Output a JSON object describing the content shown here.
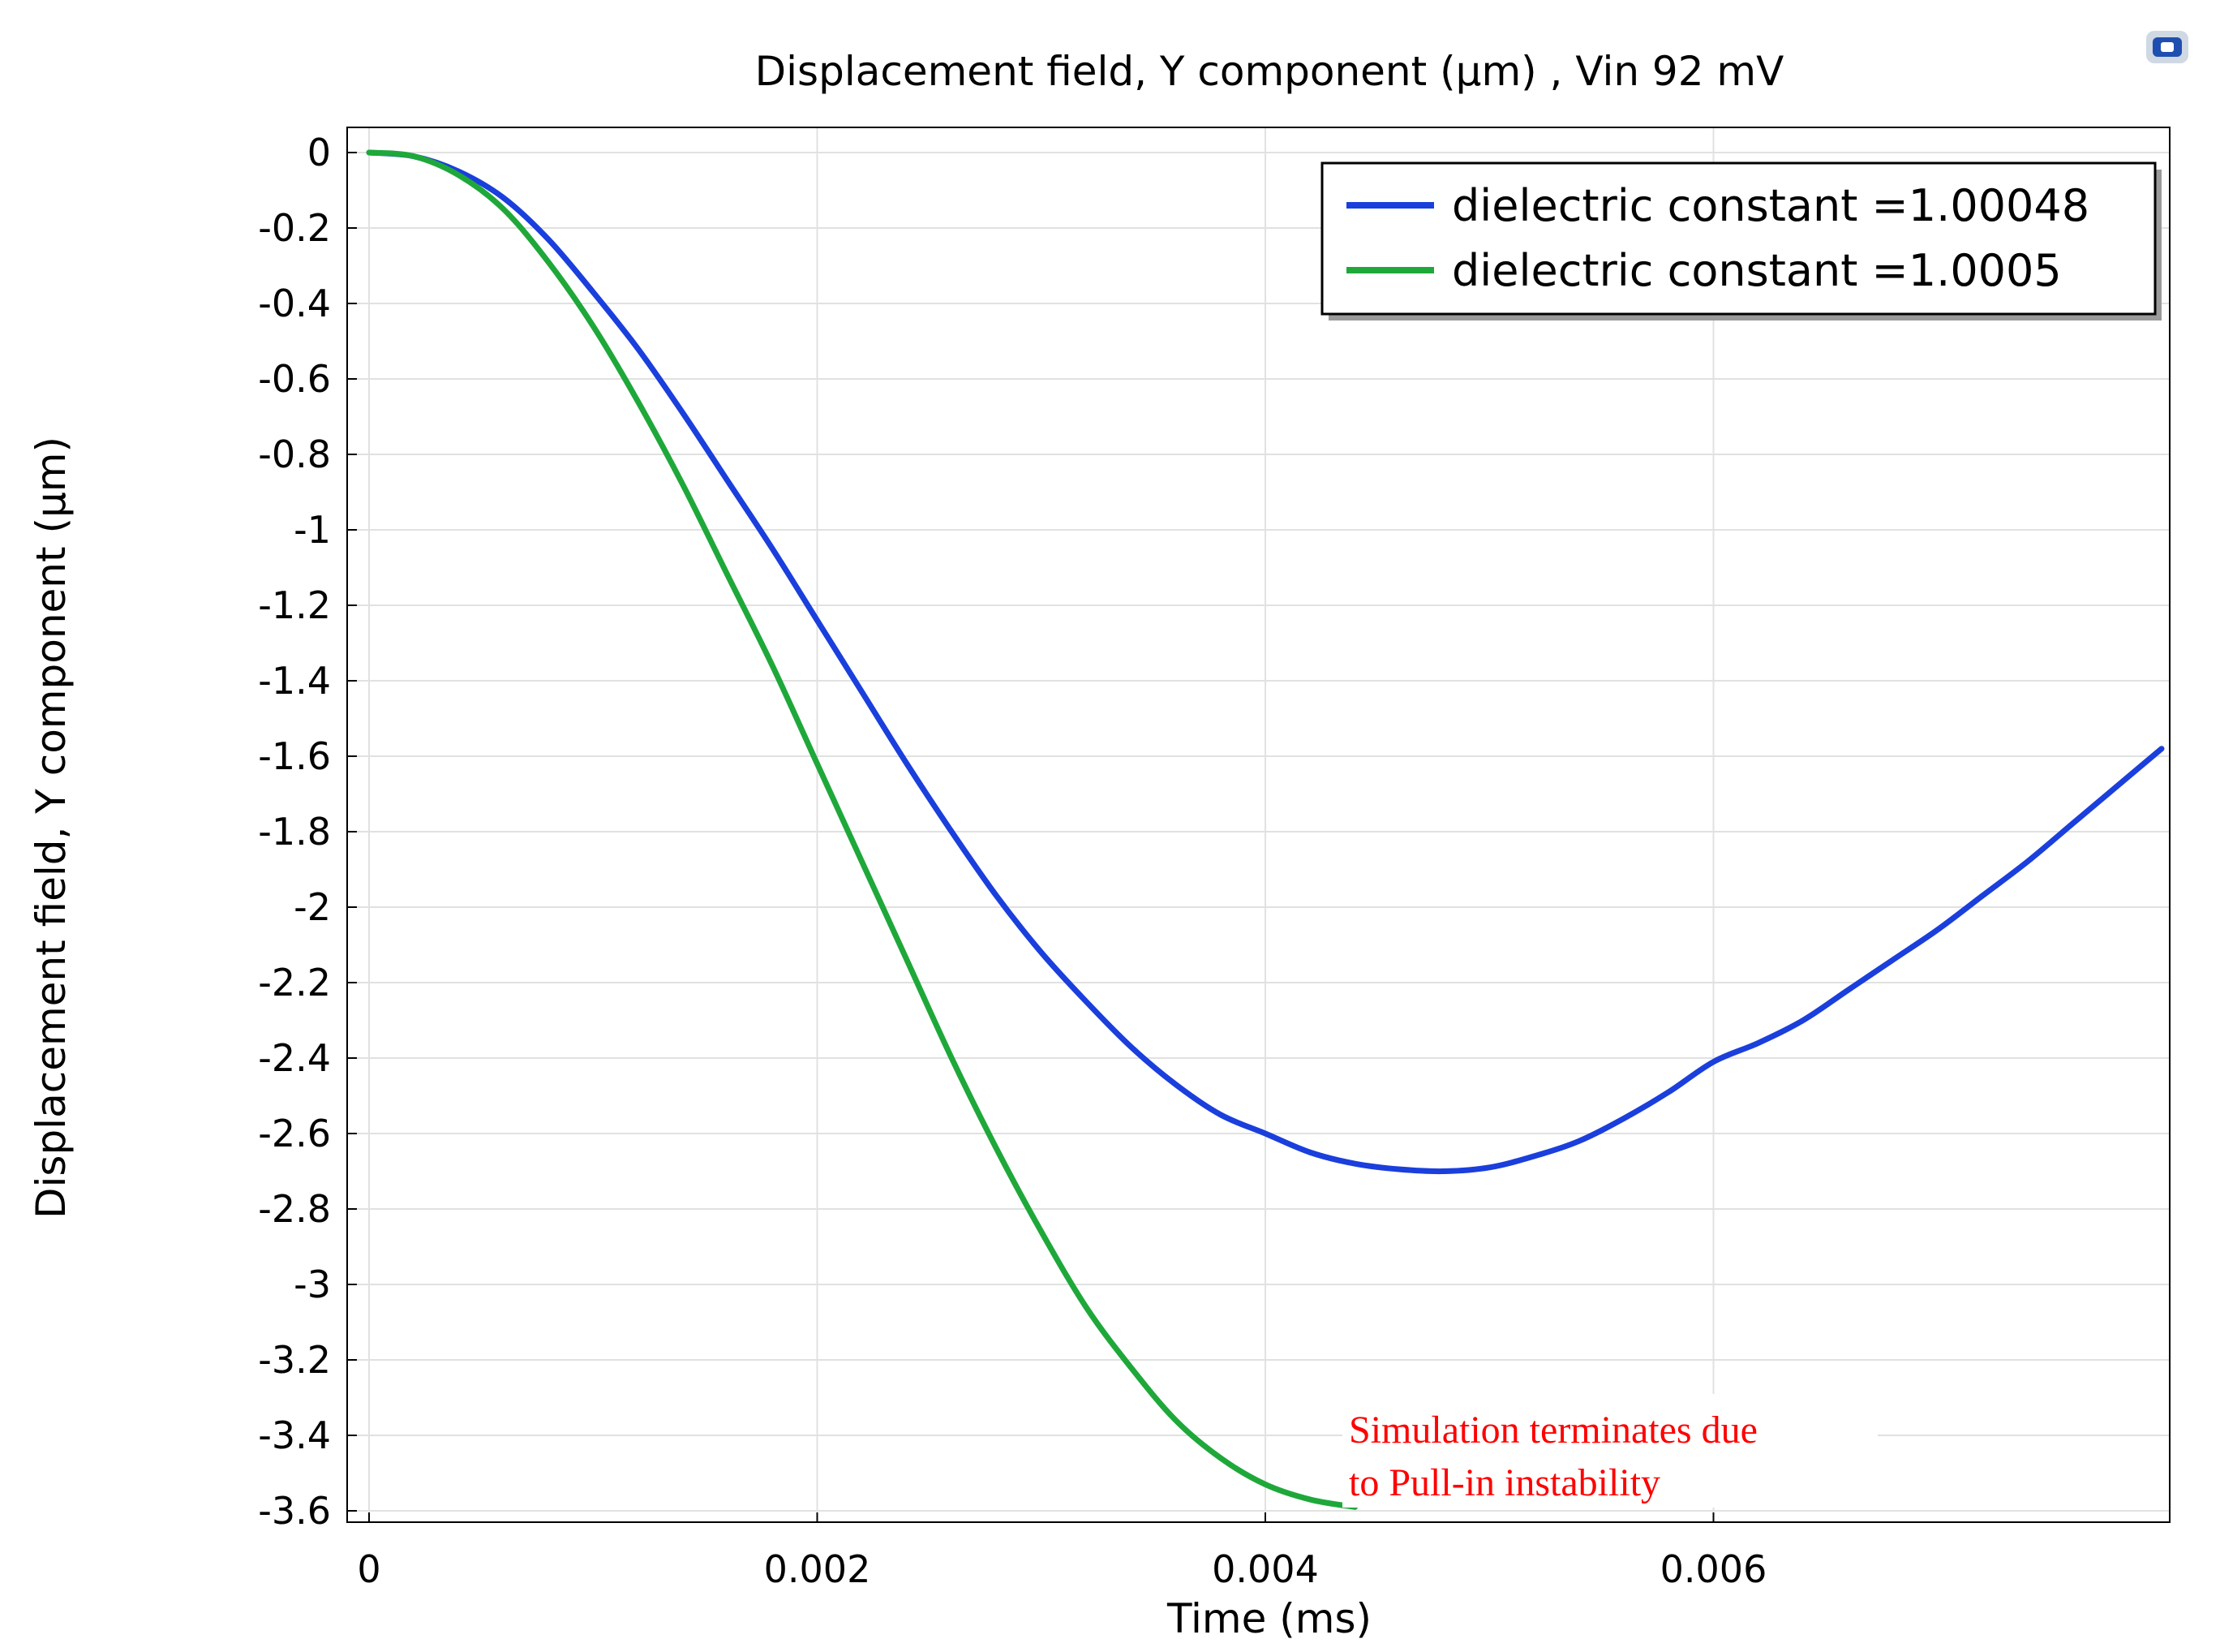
{
  "chart_data": {
    "type": "line",
    "title": "Displacement field, Y component (µm) , Vin 92 mV",
    "xlabel": "Time (ms)",
    "ylabel": "Displacement field, Y component (µm)",
    "xlim": [
      0,
      0.008
    ],
    "ylim": [
      -3.6,
      0
    ],
    "xticks": [
      0,
      0.002,
      0.004,
      0.006
    ],
    "xtick_labels": [
      "0",
      "0.002",
      "0.004",
      "0.006"
    ],
    "yticks": [
      0,
      -0.2,
      -0.4,
      -0.6,
      -0.8,
      -1,
      -1.2,
      -1.4,
      -1.6,
      -1.8,
      -2,
      -2.2,
      -2.4,
      -2.6,
      -2.8,
      -3,
      -3.2,
      -3.4,
      -3.6
    ],
    "ytick_labels": [
      "0",
      "-0.2",
      "-0.4",
      "-0.6",
      "-0.8",
      "-1",
      "-1.2",
      "-1.4",
      "-1.6",
      "-1.8",
      "-2",
      "-2.2",
      "-2.4",
      "-2.6",
      "-2.8",
      "-3",
      "-3.2",
      "-3.4",
      "-3.6"
    ],
    "grid": true,
    "legend_position": "top-right",
    "series": [
      {
        "name": "dielectric constant =1.00048",
        "color": "#1a3fdc",
        "x": [
          0,
          0.0002,
          0.0004,
          0.0006,
          0.0008,
          0.001,
          0.0012,
          0.0014,
          0.0016,
          0.0018,
          0.002,
          0.0022,
          0.0024,
          0.0026,
          0.0028,
          0.003,
          0.0032,
          0.0034,
          0.0036,
          0.0038,
          0.004,
          0.0042,
          0.0044,
          0.0046,
          0.0048,
          0.005,
          0.0052,
          0.0054,
          0.0056,
          0.0058,
          0.006,
          0.0062,
          0.0064,
          0.0066,
          0.0068,
          0.007,
          0.0072,
          0.0074,
          0.0076,
          0.0078,
          0.008
        ],
        "y": [
          0,
          -0.01,
          -0.05,
          -0.12,
          -0.23,
          -0.37,
          -0.52,
          -0.69,
          -0.87,
          -1.05,
          -1.24,
          -1.43,
          -1.62,
          -1.8,
          -1.97,
          -2.12,
          -2.25,
          -2.37,
          -2.47,
          -2.55,
          -2.6,
          -2.65,
          -2.68,
          -2.695,
          -2.7,
          -2.69,
          -2.66,
          -2.62,
          -2.56,
          -2.49,
          -2.41,
          -2.36,
          -2.3,
          -2.22,
          -2.14,
          -2.06,
          -1.97,
          -1.88,
          -1.78,
          -1.68,
          -1.58
        ]
      },
      {
        "name": "dielectric constant =1.0005",
        "color": "#1fa83a",
        "x": [
          0,
          0.0002,
          0.0004,
          0.0006,
          0.0008,
          0.001,
          0.0012,
          0.0014,
          0.0016,
          0.0018,
          0.002,
          0.0022,
          0.0024,
          0.0026,
          0.0028,
          0.003,
          0.0032,
          0.0034,
          0.0036,
          0.0038,
          0.004,
          0.0042,
          0.0044
        ],
        "y": [
          0,
          -0.01,
          -0.06,
          -0.15,
          -0.29,
          -0.46,
          -0.66,
          -0.88,
          -1.12,
          -1.36,
          -1.62,
          -1.88,
          -2.14,
          -2.4,
          -2.64,
          -2.86,
          -3.06,
          -3.22,
          -3.36,
          -3.46,
          -3.53,
          -3.57,
          -3.59
        ]
      }
    ],
    "annotation": {
      "lines": [
        "Simulation terminates due",
        "to Pull-in instability"
      ],
      "color": "#ff0000"
    }
  }
}
